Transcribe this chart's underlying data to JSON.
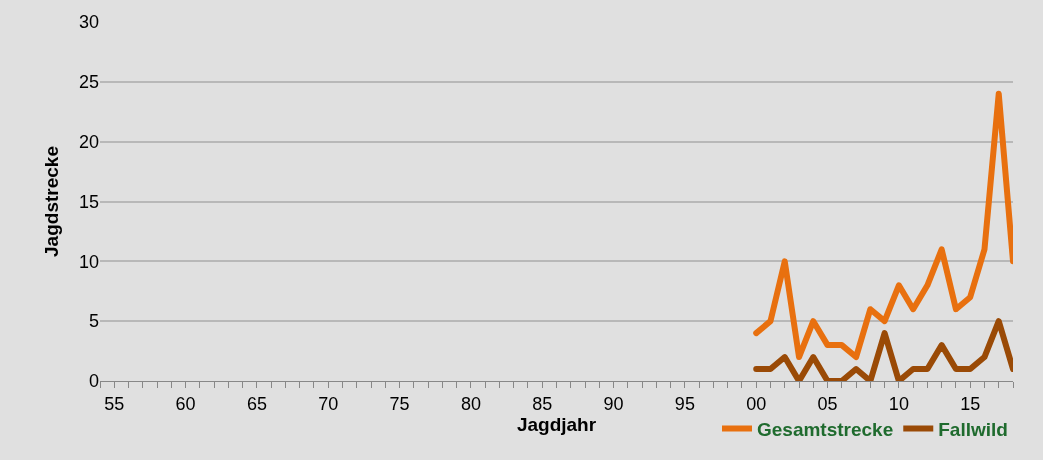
{
  "chart_data": {
    "type": "line",
    "xlabel": "Jagdjahr",
    "ylabel": "Jagdstrecke",
    "categories": [
      null,
      "55",
      null,
      null,
      null,
      null,
      "60",
      null,
      null,
      null,
      null,
      "65",
      null,
      null,
      null,
      null,
      "70",
      null,
      null,
      null,
      null,
      "75",
      null,
      null,
      null,
      null,
      "80",
      null,
      null,
      null,
      null,
      "85",
      null,
      null,
      null,
      null,
      "90",
      null,
      null,
      null,
      null,
      "95",
      null,
      null,
      null,
      null,
      "00",
      null,
      null,
      null,
      null,
      "05",
      null,
      null,
      null,
      null,
      "10",
      null,
      null,
      null,
      null,
      "15",
      null,
      null,
      null
    ],
    "series": [
      {
        "name": "Gesamtstrecke",
        "color": "#e8700f",
        "values": [
          null,
          null,
          null,
          null,
          null,
          null,
          null,
          null,
          null,
          null,
          null,
          null,
          null,
          null,
          null,
          null,
          null,
          null,
          null,
          null,
          null,
          null,
          null,
          null,
          null,
          null,
          null,
          null,
          null,
          null,
          null,
          null,
          null,
          null,
          null,
          null,
          null,
          null,
          null,
          null,
          null,
          null,
          null,
          null,
          null,
          null,
          4,
          5,
          10,
          2,
          5,
          3,
          3,
          2,
          6,
          5,
          8,
          6,
          8,
          11,
          6,
          7,
          11,
          24,
          10
        ]
      },
      {
        "name": "Fallwild",
        "color": "#9a4a06",
        "values": [
          null,
          null,
          null,
          null,
          null,
          null,
          null,
          null,
          null,
          null,
          null,
          null,
          null,
          null,
          null,
          null,
          null,
          null,
          null,
          null,
          null,
          null,
          null,
          null,
          null,
          null,
          null,
          null,
          null,
          null,
          null,
          null,
          null,
          null,
          null,
          null,
          null,
          null,
          null,
          null,
          null,
          null,
          null,
          null,
          null,
          null,
          1,
          1,
          2,
          0,
          2,
          0,
          0,
          1,
          0,
          4,
          0,
          1,
          1,
          3,
          1,
          1,
          2,
          5,
          1
        ]
      }
    ],
    "ylim": [
      0,
      30
    ],
    "yticks": [
      0,
      5,
      10,
      15,
      20,
      25,
      30
    ],
    "grid": "y",
    "legend": "bottom right",
    "marker": "none",
    "line_style": "solid"
  }
}
